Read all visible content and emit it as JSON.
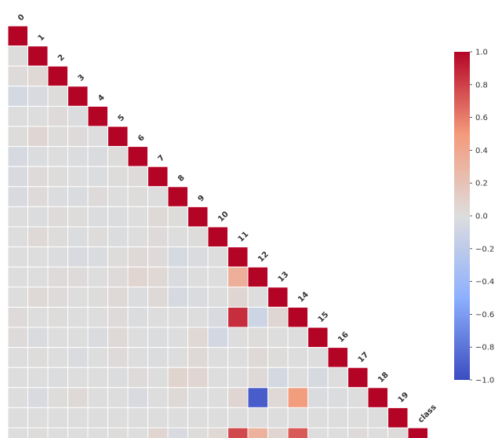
{
  "chart_data": {
    "type": "heatmap",
    "title": "",
    "xlabel": "",
    "ylabel": "",
    "labels": [
      "0",
      "1",
      "2",
      "3",
      "4",
      "5",
      "6",
      "7",
      "8",
      "9",
      "10",
      "11",
      "12",
      "13",
      "14",
      "15",
      "16",
      "17",
      "18",
      "19",
      "class"
    ],
    "matrix": [
      [
        1
      ],
      [
        0.01,
        1
      ],
      [
        0.02,
        0.04,
        1
      ],
      [
        -0.06,
        -0.03,
        0.01,
        1
      ],
      [
        0.0,
        0.0,
        0.02,
        -0.01,
        1
      ],
      [
        0.01,
        0.05,
        0.01,
        0.02,
        0.0,
        1
      ],
      [
        -0.04,
        -0.01,
        0.0,
        -0.01,
        -0.02,
        0.01,
        1
      ],
      [
        -0.03,
        0.02,
        0.01,
        0.0,
        -0.01,
        0.01,
        0.02,
        1
      ],
      [
        -0.03,
        0.02,
        -0.01,
        -0.02,
        0.02,
        0.0,
        0.01,
        0.0,
        1
      ],
      [
        0.0,
        -0.01,
        0.02,
        0.01,
        -0.01,
        -0.01,
        0.0,
        0.03,
        0.01,
        1
      ],
      [
        0.0,
        0.03,
        0.01,
        -0.01,
        0.01,
        -0.01,
        0.0,
        0.02,
        0.0,
        0.01,
        1
      ],
      [
        0.0,
        0.0,
        -0.01,
        -0.03,
        -0.02,
        0.01,
        0.03,
        0.02,
        -0.05,
        -0.02,
        0.0,
        1
      ],
      [
        0.0,
        0.0,
        0.02,
        0.02,
        0.0,
        0.02,
        0.06,
        0.04,
        -0.02,
        0.0,
        0.0,
        0.34,
        1
      ],
      [
        0.0,
        0.03,
        0.02,
        0.0,
        0.01,
        0.03,
        -0.01,
        0.03,
        -0.04,
        -0.02,
        0.0,
        0.05,
        0.0,
        1
      ],
      [
        0.02,
        0.0,
        0.01,
        0.0,
        0.0,
        0.02,
        -0.01,
        0.0,
        0.0,
        0.0,
        -0.03,
        0.86,
        -0.1,
        0.05,
        1
      ],
      [
        0.02,
        -0.02,
        0.0,
        0.0,
        -0.02,
        0.03,
        0.0,
        -0.01,
        0.0,
        0.04,
        -0.07,
        0.0,
        0.01,
        0.0,
        0.0,
        1
      ],
      [
        0.0,
        0.01,
        0.0,
        -0.02,
        0.0,
        0.02,
        0.0,
        -0.01,
        0.0,
        0.03,
        0.0,
        0.0,
        0.03,
        0.01,
        0.0,
        0.0,
        1
      ],
      [
        0.0,
        0.0,
        -0.01,
        0.0,
        0.0,
        -0.01,
        0.02,
        0.0,
        0.07,
        0.06,
        0.0,
        0.0,
        0.03,
        -0.06,
        0.0,
        -0.04,
        0.0,
        1
      ],
      [
        0.0,
        -0.03,
        0.01,
        0.03,
        0.0,
        0.0,
        -0.03,
        0.0,
        0.03,
        0.0,
        0.0,
        0.05,
        -0.92,
        0.03,
        0.48,
        -0.02,
        -0.01,
        0.0,
        1
      ],
      [
        0.0,
        0.0,
        0.0,
        0.0,
        0.0,
        0.0,
        0.0,
        0.0,
        0.0,
        0.0,
        0.0,
        0.0,
        0.0,
        0.0,
        0.0,
        0.0,
        0.0,
        0.0,
        0.0,
        1
      ],
      [
        0.0,
        0.01,
        0.0,
        0.0,
        0.0,
        0.01,
        0.0,
        0.06,
        -0.03,
        0.01,
        0.04,
        0.77,
        0.32,
        0.06,
        0.71,
        0.0,
        0.0,
        0.02,
        0.0,
        0.02,
        1
      ]
    ],
    "mask": "upper-triangle",
    "vmin": -1.0,
    "vmax": 1.0,
    "colormap": "coolwarm",
    "colorbar": {
      "ticks": [
        1.0,
        0.8,
        0.6,
        0.4,
        0.2,
        0.0,
        -0.2,
        -0.4,
        -0.6,
        -0.8,
        -1.0
      ],
      "tick_labels": [
        "1.0",
        "0.8",
        "0.6",
        "0.4",
        "0.2",
        "0.0",
        "−0.2",
        "−0.4",
        "−0.6",
        "−0.8",
        "−1.0"
      ]
    }
  }
}
